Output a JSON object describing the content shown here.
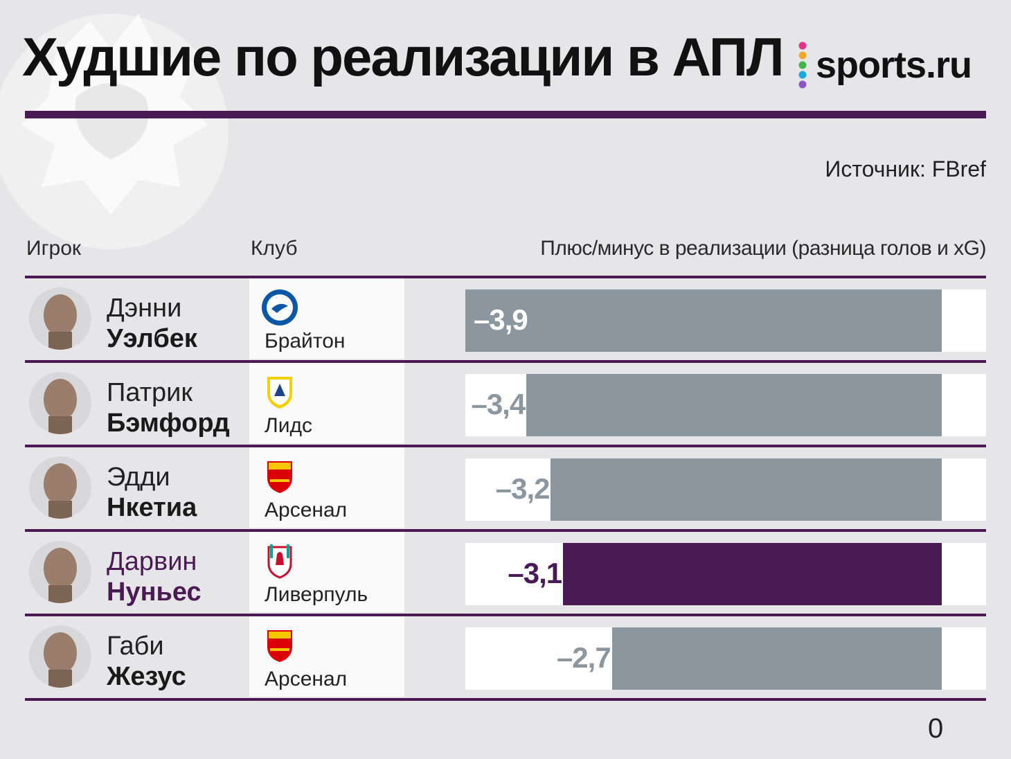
{
  "title": "Худшие по реализации в АПЛ",
  "brand": {
    "text": "sports.ru",
    "dot_colors": [
      "#e8328a",
      "#f5a623",
      "#43b649",
      "#1aa7e0",
      "#8c54c8"
    ]
  },
  "source": "Источник: FBref",
  "columns": {
    "player": "Игрок",
    "club": "Клуб",
    "metric": "Плюс/минус в реализации (разница голов и xG)"
  },
  "axis": {
    "zero_label": "0"
  },
  "colors": {
    "accent": "#4a1a55",
    "bar": "#8c969e",
    "background": "#e6e6e8"
  },
  "rows": [
    {
      "first_name": "Дэнни",
      "last_name": "Уэлбек",
      "club": "Брайтон",
      "club_icon": "brighton-crest-icon",
      "value_label": "–3,9",
      "highlight": false
    },
    {
      "first_name": "Патрик",
      "last_name": "Бэмфорд",
      "club": "Лидс",
      "club_icon": "leeds-crest-icon",
      "value_label": "–3,4",
      "highlight": false
    },
    {
      "first_name": "Эдди",
      "last_name": "Нкетиа",
      "club": "Арсенал",
      "club_icon": "arsenal-crest-icon",
      "value_label": "–3,2",
      "highlight": false
    },
    {
      "first_name": "Дарвин",
      "last_name": "Нуньес",
      "club": "Ливерпуль",
      "club_icon": "liverpool-crest-icon",
      "value_label": "–3,1",
      "highlight": true
    },
    {
      "first_name": "Габи",
      "last_name": "Жезус",
      "club": "Арсенал",
      "club_icon": "arsenal-crest-icon",
      "value_label": "–2,7",
      "highlight": false
    }
  ],
  "chart_data": {
    "type": "bar",
    "orientation": "horizontal",
    "title": "Худшие по реализации в АПЛ",
    "categories": [
      "Дэнни Уэлбек",
      "Патрик Бэмфорд",
      "Эдди Нкетиа",
      "Дарвин Нуньес",
      "Габи Жезус"
    ],
    "values": [
      -3.9,
      -3.4,
      -3.2,
      -3.1,
      -2.7
    ],
    "value_labels": [
      "–3,9",
      "–3,4",
      "–3,2",
      "–3,1",
      "–2,7"
    ],
    "xlabel": "Плюс/минус в реализации (разница голов и xG)",
    "xlim": [
      -3.9,
      0
    ],
    "tick_labels": [
      "0"
    ],
    "grid": false,
    "legend": "none"
  }
}
